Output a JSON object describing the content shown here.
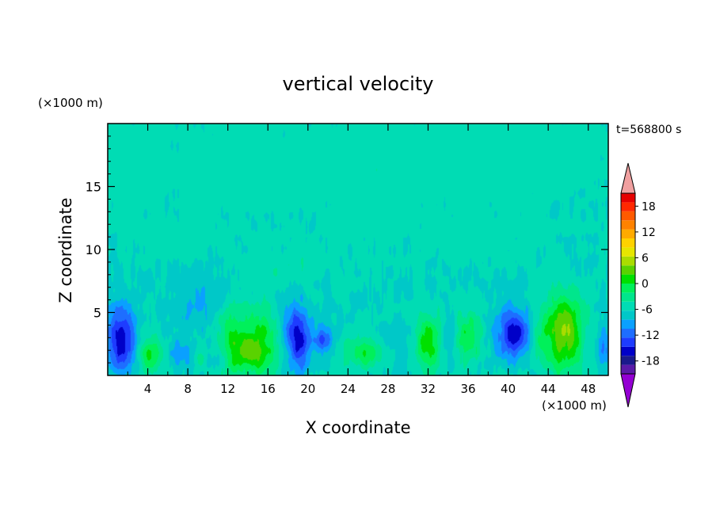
{
  "chart_data": {
    "type": "heatmap",
    "title": "vertical velocity",
    "xlabel": "X coordinate",
    "ylabel": "Z coordinate",
    "x_unit": "(×1000 m)",
    "y_unit": "(×1000 m)",
    "time_label": "t=568800 s",
    "xlim": [
      0,
      50
    ],
    "ylim": [
      0,
      20
    ],
    "x_ticks": [
      4,
      8,
      12,
      16,
      20,
      24,
      28,
      32,
      36,
      40,
      44,
      48
    ],
    "y_ticks": [
      5,
      10,
      15
    ],
    "colorbar": {
      "range": [
        -21,
        21
      ],
      "step": 3,
      "tick_values": [
        18,
        12,
        6,
        0,
        -6,
        -12,
        -18
      ],
      "extend": "both",
      "colors": [
        "#9400d3",
        "#5a1aa8",
        "#1a1a8c",
        "#0000c8",
        "#1e3cff",
        "#1e6eff",
        "#0aa0ff",
        "#00c8c8",
        "#00dcb4",
        "#00e68c",
        "#00f05a",
        "#00e000",
        "#5ad200",
        "#aadc00",
        "#e6e600",
        "#ffd200",
        "#ffaa00",
        "#ff8200",
        "#ff5a00",
        "#ff2800",
        "#e60000",
        "#f0a0a0"
      ]
    },
    "features": [
      {
        "x": 1.3,
        "z": 2.8,
        "sx": 1.0,
        "sz": 1.8,
        "w": -14
      },
      {
        "x": 4.2,
        "z": 1.8,
        "sx": 0.8,
        "sz": 1.1,
        "w": 9
      },
      {
        "x": 7.5,
        "z": 1.7,
        "sx": 0.9,
        "sz": 0.8,
        "w": -5
      },
      {
        "x": 9.0,
        "z": 1.3,
        "sx": 0.5,
        "sz": 0.6,
        "w": 4
      },
      {
        "x": 11.0,
        "z": 1.3,
        "sx": 0.6,
        "sz": 0.6,
        "w": -4
      },
      {
        "x": 12.5,
        "z": 2.8,
        "sx": 1.2,
        "sz": 2.0,
        "w": 10
      },
      {
        "x": 15.5,
        "z": 2.8,
        "sx": 1.2,
        "sz": 2.0,
        "w": 10
      },
      {
        "x": 14.0,
        "z": 1.6,
        "sx": 1.0,
        "sz": 0.9,
        "w": 5
      },
      {
        "x": 19.0,
        "z": 3.0,
        "sx": 0.8,
        "sz": 1.7,
        "w": -14
      },
      {
        "x": 21.5,
        "z": 3.0,
        "sx": 0.6,
        "sz": 0.8,
        "w": -9
      },
      {
        "x": 25.5,
        "z": 1.8,
        "sx": 1.4,
        "sz": 0.9,
        "w": 8
      },
      {
        "x": 32.0,
        "z": 2.7,
        "sx": 1.0,
        "sz": 1.6,
        "w": 11
      },
      {
        "x": 36.0,
        "z": 3.0,
        "sx": 0.9,
        "sz": 1.4,
        "w": 9
      },
      {
        "x": 34.0,
        "z": 2.5,
        "sx": 0.5,
        "sz": 1.5,
        "w": -4
      },
      {
        "x": 40.5,
        "z": 3.4,
        "sx": 1.2,
        "sz": 1.4,
        "w": -13
      },
      {
        "x": 43.0,
        "z": 3.0,
        "sx": 0.6,
        "sz": 1.5,
        "w": 4
      },
      {
        "x": 45.5,
        "z": 3.5,
        "sx": 1.4,
        "sz": 2.2,
        "w": 15
      },
      {
        "x": 49.5,
        "z": 2.5,
        "sx": 0.5,
        "sz": 1.2,
        "w": -6
      },
      {
        "x": 17.5,
        "z": 4.5,
        "sx": 0.7,
        "sz": 1.2,
        "w": -3
      },
      {
        "x": 29.0,
        "z": 2.5,
        "sx": 1.4,
        "sz": 1.6,
        "w": -2
      },
      {
        "x": 9.0,
        "z": 6.0,
        "sx": 2.0,
        "sz": 2.0,
        "w": -3
      }
    ],
    "upper_patches": [
      {
        "x": 2.0,
        "z": 16.5,
        "sx": 2.0,
        "sz": 2.0,
        "w": 2
      },
      {
        "x": 13.0,
        "z": 16.5,
        "sx": 4.5,
        "sz": 2.4,
        "w": 2
      },
      {
        "x": 27.0,
        "z": 16.0,
        "sx": 3.5,
        "sz": 3.5,
        "w": 2
      },
      {
        "x": 40.0,
        "z": 17.5,
        "sx": 6.0,
        "sz": 2.5,
        "w": 2
      },
      {
        "x": 6.0,
        "z": 10.5,
        "sx": 3.0,
        "sz": 1.2,
        "w": 2
      },
      {
        "x": 18.0,
        "z": 9.0,
        "sx": 4.0,
        "sz": 1.2,
        "w": 2
      },
      {
        "x": 38.0,
        "z": 10.5,
        "sx": 4.0,
        "sz": 1.3,
        "w": 2
      }
    ]
  }
}
